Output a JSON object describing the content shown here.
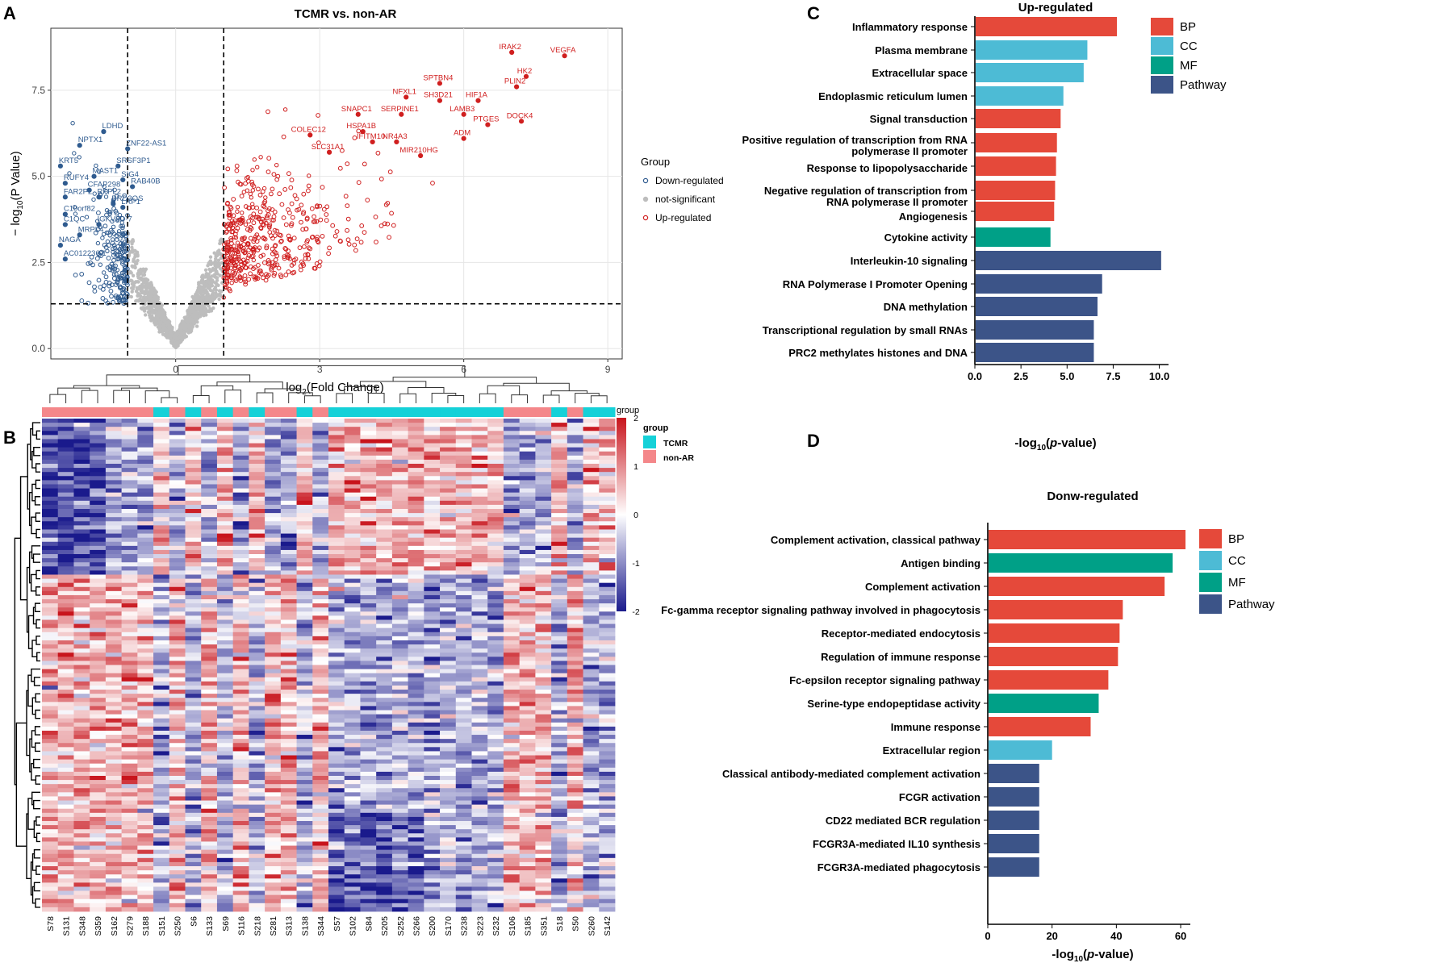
{
  "panel_labels": [
    "A",
    "B",
    "C",
    "D"
  ],
  "chart_data": [
    {
      "panel": "A",
      "type": "scatter",
      "title": "TCMR vs. non-AR",
      "xlabel": "log2(Fold Change)",
      "ylabel": "-log10(P Value)",
      "xlim": [
        -2.6,
        9.3
      ],
      "ylim": [
        -0.3,
        9.3
      ],
      "x_ticks": [
        "0",
        "3",
        "6",
        "9"
      ],
      "x_tick_values": [
        0,
        3,
        6,
        9
      ],
      "y_ticks": [
        "0.0",
        "2.5",
        "5.0",
        "7.5"
      ],
      "y_tick_values": [
        0,
        2.5,
        5,
        7.5
      ],
      "thresholds": {
        "fold_change": [
          -1,
          1
        ],
        "p_value": 1.3
      },
      "legend": {
        "title": "Group",
        "entries": [
          "Down-regulated",
          "not-significant",
          "Up-regulated"
        ],
        "colors": [
          "#2f5b8f",
          "#bdbdbd",
          "#d01f1f"
        ],
        "placement": "right"
      },
      "labeled_points": [
        {
          "label": "IRAK2",
          "x": 7.0,
          "y": 8.6,
          "group": "up"
        },
        {
          "label": "VEGFA",
          "x": 8.1,
          "y": 8.5,
          "group": "up"
        },
        {
          "label": "HK2",
          "x": 7.3,
          "y": 7.9,
          "group": "up"
        },
        {
          "label": "SPTBN4",
          "x": 5.5,
          "y": 7.7,
          "group": "up"
        },
        {
          "label": "PLIN2",
          "x": 7.1,
          "y": 7.6,
          "group": "up"
        },
        {
          "label": "NFXL1",
          "x": 4.8,
          "y": 7.3,
          "group": "up"
        },
        {
          "label": "SH3D21",
          "x": 5.5,
          "y": 7.2,
          "group": "up"
        },
        {
          "label": "HIF1A",
          "x": 6.3,
          "y": 7.2,
          "group": "up"
        },
        {
          "label": "LAMB3",
          "x": 6.0,
          "y": 6.8,
          "group": "up"
        },
        {
          "label": "DOCK4",
          "x": 7.2,
          "y": 6.6,
          "group": "up"
        },
        {
          "label": "SNAPC1",
          "x": 3.8,
          "y": 6.8,
          "group": "up"
        },
        {
          "label": "SERPINE1",
          "x": 4.7,
          "y": 6.8,
          "group": "up"
        },
        {
          "label": "PTGES",
          "x": 6.5,
          "y": 6.5,
          "group": "up"
        },
        {
          "label": "HSPA1B",
          "x": 3.9,
          "y": 6.3,
          "group": "up"
        },
        {
          "label": "COLEC12",
          "x": 2.8,
          "y": 6.2,
          "group": "up"
        },
        {
          "label": "NR4A3",
          "x": 4.6,
          "y": 6.0,
          "group": "up"
        },
        {
          "label": "ADM",
          "x": 6.0,
          "y": 6.1,
          "group": "up"
        },
        {
          "label": "IFITM10",
          "x": 4.1,
          "y": 6.0,
          "group": "up"
        },
        {
          "label": "SLC31A1",
          "x": 3.2,
          "y": 5.7,
          "group": "up"
        },
        {
          "label": "MIR210HG",
          "x": 5.1,
          "y": 5.6,
          "group": "up"
        },
        {
          "label": "LDHD",
          "x": -1.5,
          "y": 6.3,
          "group": "down"
        },
        {
          "label": "NPTX1",
          "x": -2.0,
          "y": 5.9,
          "group": "down"
        },
        {
          "label": "ZNF22-AS1",
          "x": -1.0,
          "y": 5.8,
          "group": "down"
        },
        {
          "label": "KRT5",
          "x": -2.4,
          "y": 5.3,
          "group": "down"
        },
        {
          "label": "SRSF3P1",
          "x": -1.2,
          "y": 5.3,
          "group": "down"
        },
        {
          "label": "MAST1",
          "x": -1.7,
          "y": 5.0,
          "group": "down"
        },
        {
          "label": "SIG4",
          "x": -1.1,
          "y": 4.9,
          "group": "down"
        },
        {
          "label": "RUFY4",
          "x": -2.3,
          "y": 4.8,
          "group": "down"
        },
        {
          "label": "CFAP298",
          "x": -1.8,
          "y": 4.6,
          "group": "down"
        },
        {
          "label": "RAB40B",
          "x": -0.9,
          "y": 4.7,
          "group": "down"
        },
        {
          "label": "FAR2P2",
          "x": -2.3,
          "y": 4.4,
          "group": "down"
        },
        {
          "label": "RFPL2",
          "x": -1.6,
          "y": 4.4,
          "group": "down"
        },
        {
          "label": "BRD3OS",
          "x": -1.3,
          "y": 4.2,
          "group": "down"
        },
        {
          "label": "LRP1",
          "x": -1.1,
          "y": 4.1,
          "group": "down"
        },
        {
          "label": "C10orf82",
          "x": -2.3,
          "y": 3.9,
          "group": "down"
        },
        {
          "label": "C1QC",
          "x": -2.3,
          "y": 3.6,
          "group": "down"
        },
        {
          "label": "IGKV3D-7",
          "x": -1.6,
          "y": 3.6,
          "group": "down"
        },
        {
          "label": "MRPL4",
          "x": -2.0,
          "y": 3.3,
          "group": "down"
        },
        {
          "label": "NAGA",
          "x": -2.4,
          "y": 3.0,
          "group": "down"
        },
        {
          "label": "AC012236.1",
          "x": -2.3,
          "y": 2.6,
          "group": "down"
        }
      ]
    },
    {
      "panel": "B",
      "type": "heatmap",
      "samples": [
        "S78",
        "S131",
        "S348",
        "S359",
        "S162",
        "S279",
        "S188",
        "S151",
        "S250",
        "S6",
        "S133",
        "S69",
        "S116",
        "S218",
        "S281",
        "S313",
        "S138",
        "S344",
        "S57",
        "S102",
        "S84",
        "S205",
        "S252",
        "S266",
        "S200",
        "S170",
        "S238",
        "S223",
        "S232",
        "S106",
        "S185",
        "S351",
        "S18",
        "S50",
        "S260",
        "S142"
      ],
      "sample_groups": [
        "non-AR",
        "non-AR",
        "non-AR",
        "non-AR",
        "non-AR",
        "non-AR",
        "non-AR",
        "TCMR",
        "non-AR",
        "TCMR",
        "non-AR",
        "TCMR",
        "non-AR",
        "TCMR",
        "non-AR",
        "non-AR",
        "TCMR",
        "non-AR",
        "TCMR",
        "TCMR",
        "TCMR",
        "TCMR",
        "TCMR",
        "TCMR",
        "TCMR",
        "TCMR",
        "TCMR",
        "TCMR",
        "TCMR",
        "non-AR",
        "non-AR",
        "non-AR",
        "TCMR",
        "non-AR",
        "TCMR",
        "TCMR"
      ],
      "color_scale": {
        "title": "group",
        "min": -2,
        "max": 2,
        "ticks": [
          "2",
          "1",
          "0",
          "-1",
          "-2"
        ],
        "low": "#1a1a8c",
        "mid": "#ffffff",
        "high": "#c8141c"
      },
      "legend": {
        "title": "group",
        "entries": [
          "TCMR",
          "non-AR"
        ],
        "colors": [
          "#15d1d8",
          "#f4878a"
        ]
      }
    },
    {
      "panel": "C",
      "type": "bar",
      "orientation": "horizontal",
      "title": "Up-regulated",
      "xlabel": "-log10(p-value)",
      "xlim": [
        0,
        10.5
      ],
      "x_ticks": [
        "0.0",
        "2.5",
        "5.0",
        "7.5",
        "10.0"
      ],
      "x_tick_values": [
        0,
        2.5,
        5,
        7.5,
        10
      ],
      "categories": [
        "Inflammatory response",
        "Plasma membrane",
        "Extracellular space",
        "Endoplasmic reticulum lumen",
        "Signal transduction",
        "Positive regulation of transcription from RNA polymerase II promoter",
        "Response to lipopolysaccharide",
        "Negative regulation of transcription from RNA polymerase II promoter",
        "Angiogenesis",
        "Cytokine activity",
        "Interleukin-10 signaling",
        "RNA Polymerase I Promoter Opening",
        "DNA methylation",
        "Transcriptional regulation by small RNAs",
        "PRC2 methylates histones and DNA"
      ],
      "category_lines": [
        [
          "Inflammatory response"
        ],
        [
          "Plasma membrane"
        ],
        [
          "Extracellular space"
        ],
        [
          "Endoplasmic reticulum lumen"
        ],
        [
          "Signal transduction"
        ],
        [
          "Positive regulation of transcription from RNA",
          "polymerase II promoter"
        ],
        [
          "Response to lipopolysaccharide"
        ],
        [
          "Negative regulation of transcription from",
          "RNA polymerase II promoter"
        ],
        [
          "Angiogenesis"
        ],
        [
          "Cytokine activity"
        ],
        [
          "Interleukin-10 signaling"
        ],
        [
          "RNA Polymerase I Promoter Opening"
        ],
        [
          "DNA methylation"
        ],
        [
          "Transcriptional regulation by small RNAs"
        ],
        [
          "PRC2 methylates histones and DNA"
        ]
      ],
      "values": [
        7.7,
        6.1,
        5.9,
        4.8,
        4.65,
        4.45,
        4.4,
        4.35,
        4.3,
        4.1,
        10.1,
        6.9,
        6.65,
        6.45,
        6.45
      ],
      "groups": [
        "BP",
        "CC",
        "CC",
        "CC",
        "BP",
        "BP",
        "BP",
        "BP",
        "BP",
        "MF",
        "Pathway",
        "Pathway",
        "Pathway",
        "Pathway",
        "Pathway"
      ],
      "legend": {
        "entries": [
          "BP",
          "CC",
          "MF",
          "Pathway"
        ],
        "colors": [
          "#e5493a",
          "#4dbbd5",
          "#00a087",
          "#3c5488"
        ],
        "placement": "top-right"
      }
    },
    {
      "panel": "D",
      "type": "bar",
      "orientation": "horizontal",
      "title": "Donw-regulated",
      "xlabel": "-log10(p-value)",
      "xlim": [
        0,
        63
      ],
      "x_ticks": [
        "0",
        "20",
        "40",
        "60"
      ],
      "x_tick_values": [
        0,
        20,
        40,
        60
      ],
      "categories": [
        "Complement activation, classical pathway",
        "Antigen binding",
        "Complement activation",
        "Fc-gamma receptor signaling pathway involved in phagocytosis",
        "Receptor-mediated endocytosis",
        "Regulation of immune response",
        "Fc-epsilon receptor signaling pathway",
        "Serine-type endopeptidase activity",
        "Immune response",
        "Extracellular region",
        "Classical antibody-mediated complement activation",
        "FCGR activation",
        "CD22 mediated BCR regulation",
        "FCGR3A-mediated IL10 synthesis",
        "FCGR3A-mediated phagocytosis"
      ],
      "values": [
        61.5,
        57.5,
        55,
        42,
        41,
        40.5,
        37.5,
        34.5,
        32,
        20,
        16,
        16,
        16,
        16,
        16
      ],
      "groups": [
        "BP",
        "MF",
        "BP",
        "BP",
        "BP",
        "BP",
        "BP",
        "MF",
        "BP",
        "CC",
        "Pathway",
        "Pathway",
        "Pathway",
        "Pathway",
        "Pathway"
      ],
      "legend": {
        "entries": [
          "BP",
          "CC",
          "MF",
          "Pathway"
        ],
        "colors": [
          "#e5493a",
          "#4dbbd5",
          "#00a087",
          "#3c5488"
        ],
        "placement": "top-right"
      }
    }
  ]
}
